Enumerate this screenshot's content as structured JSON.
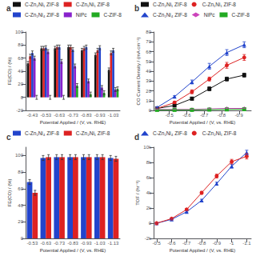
{
  "chart_data": [
    {
      "type": "bar",
      "title": "a",
      "categories": [
        "-0.43",
        "-0.53",
        "-0.63",
        "-0.73",
        "-0.83",
        "-0.93",
        "-1.03"
      ],
      "xlabel": "Potential Applied / (V, vs. RHE)",
      "ylabel": "FE(CO) / (%)",
      "ylim": [
        -20,
        100
      ],
      "yticks": [
        -20,
        0,
        20,
        40,
        60,
        80,
        100
      ],
      "grid": false,
      "legend": "top",
      "series": [
        {
          "name": "C-Zn₂Ni₁ ZIF-8",
          "color": "#111111",
          "values": [
            52,
            75,
            75,
            77,
            72,
            65,
            42
          ],
          "errors": [
            3,
            3,
            3,
            3,
            3,
            3,
            3
          ]
        },
        {
          "name": "C-Zn₁Ni₁ ZIF-8",
          "color": "#dd2222",
          "values": [
            63,
            75,
            77,
            77,
            75,
            72,
            68
          ],
          "errors": [
            3,
            3,
            3,
            3,
            3,
            3,
            3
          ]
        },
        {
          "name": "C-Zn₁Ni₄ ZIF-8",
          "color": "#2244cc",
          "values": [
            68,
            76,
            77,
            73,
            77,
            76,
            72
          ],
          "errors": [
            3,
            3,
            3,
            3,
            3,
            3,
            3
          ]
        },
        {
          "name": "NiPc",
          "color": "#8822cc",
          "values": [
            60,
            70,
            55,
            48,
            25,
            15,
            12
          ],
          "errors": [
            3,
            3,
            3,
            3,
            3,
            3,
            3
          ]
        },
        {
          "name": "C-ZIF-8",
          "color": "#22aa22",
          "values": [
            0,
            0,
            0,
            18,
            5,
            7,
            13
          ],
          "errors": [
            3,
            3,
            3,
            3,
            3,
            3,
            3
          ]
        }
      ]
    },
    {
      "type": "line",
      "title": "b",
      "x": [
        -0.43,
        -0.53,
        -0.63,
        -0.73,
        -0.83,
        -0.93
      ],
      "xlabel": "Potential Applied / (V, vs. RHE)",
      "ylabel": "CO Current Density / (mA cm⁻²)",
      "xlim": [
        -0.41,
        -0.97
      ],
      "xticks": [
        -0.5,
        -0.6,
        -0.7,
        -0.8,
        -0.9
      ],
      "ylim": [
        0,
        80
      ],
      "yticks": [
        0,
        10,
        20,
        30,
        40,
        50,
        60,
        70,
        80
      ],
      "grid": false,
      "legend": "top",
      "series": [
        {
          "name": "C-Zn₂Ni₁ ZIF-8",
          "color": "#111111",
          "marker": "square",
          "values": [
            2,
            5,
            12,
            22,
            32,
            36
          ],
          "errors": [
            0.5,
            1,
            1.5,
            2,
            2,
            2
          ]
        },
        {
          "name": "C-Zn₁Ni₁ ZIF-8",
          "color": "#dd2222",
          "marker": "circle",
          "values": [
            2,
            8,
            19,
            32,
            46,
            54
          ],
          "errors": [
            0.5,
            1,
            2,
            2,
            3,
            3
          ]
        },
        {
          "name": "C-Zn₁Ni₄ ZIF-8",
          "color": "#2244cc",
          "marker": "triangle",
          "values": [
            3,
            14,
            29,
            45,
            59,
            67
          ],
          "errors": [
            0.5,
            1,
            2,
            3,
            3,
            3
          ]
        },
        {
          "name": "NiPc",
          "color": "#cc44bb",
          "marker": "diamond",
          "values": [
            1,
            1,
            1,
            1.5,
            2,
            2
          ],
          "errors": [
            0.2,
            0.2,
            0.2,
            0.3,
            0.3,
            0.3
          ]
        },
        {
          "name": "C-ZIF-8",
          "color": "#22aa22",
          "marker": "square",
          "values": [
            0.5,
            0.5,
            0.5,
            0.8,
            1,
            1.2
          ],
          "errors": [
            0.1,
            0.1,
            0.1,
            0.1,
            0.2,
            0.2
          ]
        }
      ]
    },
    {
      "type": "bar",
      "title": "c",
      "categories": [
        "-0.53",
        "-0.63",
        "-0.73",
        "-0.83",
        "-0.93",
        "-1.03",
        "-1.13"
      ],
      "xlabel": "Potential Applied / (V, vs. RHE)",
      "ylabel": "FE(CO) / (%)",
      "ylim": [
        0,
        110
      ],
      "yticks": [
        0,
        20,
        40,
        60,
        80,
        100
      ],
      "grid": false,
      "legend": "top",
      "series": [
        {
          "name": "C-Zn₁Ni₄ ZIF-8",
          "color": "#2244cc",
          "values": [
            68,
            97,
            98,
            98,
            98,
            98,
            97
          ],
          "errors": [
            3,
            3,
            3,
            3,
            3,
            3,
            3
          ]
        },
        {
          "name": "C-Zn₂Ni₁ ZIF-8",
          "color": "#dd2222",
          "values": [
            55,
            98,
            98,
            98,
            98,
            98,
            96
          ],
          "errors": [
            3,
            3,
            3,
            3,
            3,
            3,
            3
          ]
        }
      ]
    },
    {
      "type": "line",
      "title": "d",
      "x": [
        -0.5,
        -0.6,
        -0.7,
        -0.8,
        -0.9,
        -1,
        -1.1
      ],
      "xlabel": "Potential Applied / (V, vs. RHE)",
      "ylabel": "TOF / (hr⁻¹)",
      "xlim": [
        -0.48,
        -1.13
      ],
      "xticks": [
        -0.5,
        -0.6,
        -0.7,
        -0.8,
        -0.9,
        -1,
        -1.1
      ],
      "ylim": [
        -2000,
        10000
      ],
      "yticks": [
        {
          "value": -2000,
          "label": "-2k"
        },
        0,
        {
          "value": 2000,
          "label": "2k"
        },
        {
          "value": 4000,
          "label": "4k"
        },
        {
          "value": 6000,
          "label": "6k"
        },
        {
          "value": 8000,
          "label": "8k"
        },
        {
          "value": 10000,
          "label": "10k"
        }
      ],
      "grid": false,
      "legend": "top",
      "series": [
        {
          "name": "C-Zn₁Ni₄ ZIF-8",
          "color": "#2244cc",
          "marker": "triangle",
          "values": [
            0,
            500,
            1500,
            3000,
            5200,
            7500,
            9300
          ],
          "errors": [
            50,
            80,
            100,
            150,
            200,
            250,
            300
          ]
        },
        {
          "name": "C-Zn₂Ni₁ ZIF-8",
          "color": "#dd2222",
          "marker": "circle",
          "values": [
            0,
            600,
            1800,
            4000,
            6200,
            8100,
            8800
          ],
          "errors": [
            50,
            80,
            120,
            180,
            250,
            300,
            350
          ]
        }
      ]
    }
  ]
}
